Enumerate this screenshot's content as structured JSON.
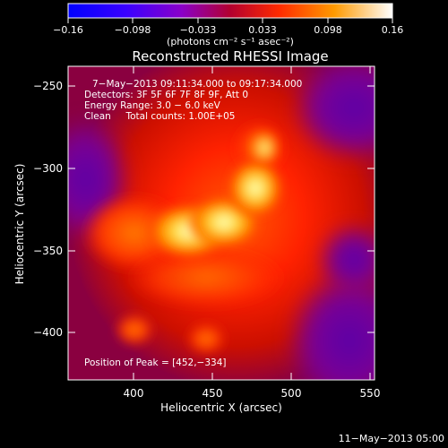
{
  "colorbar": {
    "tick_labels": [
      "−0.16",
      "−0.098",
      "−0.033",
      "0.033",
      "0.098",
      "0.16"
    ],
    "units": "(photons cm⁻² s⁻¹ asec⁻²)"
  },
  "plot": {
    "title": "Reconstructed RHESSI Image",
    "xlabel": "Heliocentric X (arcsec)",
    "ylabel": "Heliocentric Y (arcsec)",
    "x_ticks": [
      "400",
      "450",
      "500",
      "550"
    ],
    "y_ticks": [
      "−250",
      "−300",
      "−350",
      "−400"
    ],
    "info_lines": [
      "7−May−2013 09:11:34.000 to 09:17:34.000",
      "Detectors: 3F 5F 6F 7F 8F 9F, Att 0",
      "Energy Range: 3.0 − 6.0 keV",
      "Clean     Total counts: 1.00E+05"
    ],
    "peak_text": "Position of Peak = [452,−334]"
  },
  "footer": {
    "date": "11−May−2013 05:00"
  },
  "colors": {
    "background": "#000000",
    "axis": "#ffffff"
  }
}
